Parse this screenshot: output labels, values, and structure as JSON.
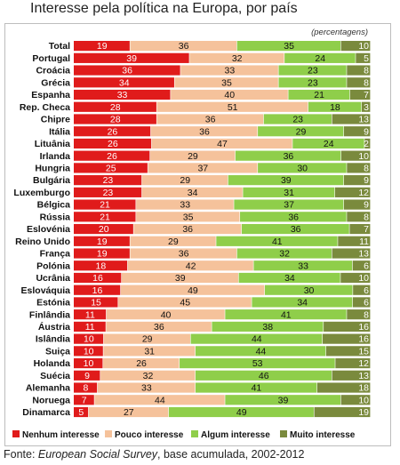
{
  "title": "Interesse pela política na Europa, por país",
  "source_label": "Fonte:",
  "source_title": "European Social Survey",
  "source_rest": ", base acumulada, 2002-2012",
  "colors": {
    "nenhum": "#e01b1b",
    "pouco": "#f5c29b",
    "algum": "#8fce4a",
    "muito": "#7a8a3d"
  },
  "chart_data": {
    "type": "bar",
    "orientation": "horizontal",
    "stacked": true,
    "unit_note": "(percentagens)",
    "legend_position": "bottom",
    "grid": false,
    "xlim": [
      0,
      100
    ],
    "categories": [
      "Total",
      "Portugal",
      "Croácia",
      "Grécia",
      "Espanha",
      "Rep. Checa",
      "Chipre",
      "Itália",
      "Lituânia",
      "Irlanda",
      "Hungria",
      "Bulgária",
      "Luxemburgo",
      "Bélgica",
      "Rússia",
      "Eslovénia",
      "Reino Unido",
      "França",
      "Polónia",
      "Ucrânia",
      "Eslováquia",
      "Estónia",
      "Finlândia",
      "Áustria",
      "Islândia",
      "Suiça",
      "Holanda",
      "Suécia",
      "Alemanha",
      "Noruega",
      "Dinamarca"
    ],
    "series": [
      {
        "name": "Nenhum interesse",
        "key": "nenhum",
        "values": [
          19,
          39,
          36,
          34,
          33,
          28,
          28,
          26,
          26,
          26,
          25,
          23,
          23,
          21,
          21,
          20,
          19,
          19,
          18,
          16,
          16,
          15,
          11,
          11,
          10,
          10,
          10,
          9,
          8,
          7,
          5
        ]
      },
      {
        "name": "Pouco interesse",
        "key": "pouco",
        "values": [
          36,
          32,
          33,
          35,
          40,
          51,
          36,
          36,
          47,
          29,
          37,
          29,
          34,
          33,
          35,
          36,
          29,
          36,
          42,
          39,
          49,
          45,
          40,
          36,
          29,
          31,
          26,
          32,
          33,
          44,
          27
        ]
      },
      {
        "name": "Algum interesse",
        "key": "algum",
        "values": [
          35,
          24,
          23,
          23,
          21,
          18,
          23,
          29,
          24,
          36,
          30,
          39,
          31,
          37,
          36,
          36,
          41,
          32,
          33,
          34,
          30,
          34,
          41,
          38,
          44,
          44,
          53,
          46,
          41,
          39,
          49
        ]
      },
      {
        "name": "Muito interesse",
        "key": "muito",
        "values": [
          10,
          5,
          8,
          8,
          7,
          3,
          13,
          9,
          2,
          10,
          8,
          9,
          12,
          9,
          8,
          7,
          11,
          13,
          6,
          10,
          6,
          6,
          8,
          16,
          16,
          15,
          12,
          13,
          18,
          10,
          19
        ]
      }
    ]
  }
}
